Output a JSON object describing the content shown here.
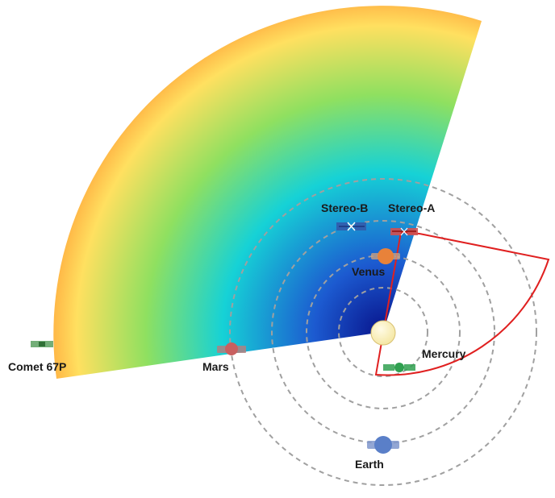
{
  "labels": {
    "stereo_b": "Stereo-B",
    "stereo_a": "Stereo-A",
    "venus": "Venus",
    "mercury": "Mercury",
    "earth": "Earth",
    "mars": "Mars",
    "comet": "Comet 67P"
  },
  "colors": {
    "fan_core": "#08148c",
    "fan_mid": "#16d2d6",
    "fan_green": "#8fe060",
    "fan_yellow": "#ffe060",
    "fan_orange": "#ff8a2a",
    "fan_edge": "#f01414",
    "orbit": "#a0a0a0",
    "fov_outline": "#e02020",
    "sun": "#f4e6a0",
    "venus": "#e8823a",
    "earth": "#5a7fc8",
    "mars": "#c86060",
    "mercury": "#30a050"
  }
}
